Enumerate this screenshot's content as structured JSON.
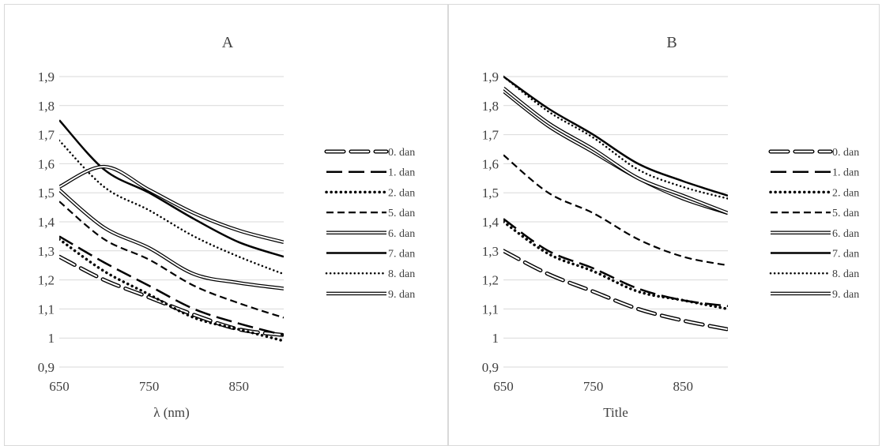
{
  "chart_data": [
    {
      "type": "line",
      "title": "A",
      "xlabel": "λ (nm)",
      "ylabel": "",
      "xlim": [
        650,
        900
      ],
      "ylim": [
        0.9,
        1.9
      ],
      "x_ticks": [
        "650",
        "750",
        "850"
      ],
      "y_ticks": [
        "0,9",
        "1",
        "1,1",
        "1,2",
        "1,3",
        "1,4",
        "1,5",
        "1,6",
        "1,7",
        "1,8",
        "1,9"
      ],
      "x": [
        650,
        700,
        750,
        800,
        850,
        900
      ],
      "grid": "horizontal",
      "legend_position": "right",
      "series": [
        {
          "name": "0. dan",
          "style": "double-dash",
          "values": [
            1.28,
            1.2,
            1.14,
            1.08,
            1.03,
            1.01
          ]
        },
        {
          "name": "1. dan",
          "style": "long-dash",
          "values": [
            1.35,
            1.26,
            1.18,
            1.1,
            1.05,
            1.01
          ]
        },
        {
          "name": "2. dan",
          "style": "round-dot",
          "values": [
            1.34,
            1.23,
            1.15,
            1.07,
            1.03,
            0.99
          ]
        },
        {
          "name": "5. dan",
          "style": "dash",
          "values": [
            1.47,
            1.34,
            1.27,
            1.18,
            1.12,
            1.07
          ]
        },
        {
          "name": "6. dan",
          "style": "double",
          "values": [
            1.51,
            1.38,
            1.31,
            1.22,
            1.19,
            1.17
          ]
        },
        {
          "name": "7. dan",
          "style": "solid",
          "values": [
            1.75,
            1.58,
            1.5,
            1.41,
            1.33,
            1.28
          ]
        },
        {
          "name": "8. dan",
          "style": "fine-dot",
          "values": [
            1.68,
            1.52,
            1.44,
            1.35,
            1.28,
            1.22
          ]
        },
        {
          "name": "9. dan",
          "style": "double",
          "values": [
            1.52,
            1.59,
            1.51,
            1.43,
            1.37,
            1.33
          ]
        }
      ]
    },
    {
      "type": "line",
      "title": "B",
      "xlabel": "Title",
      "ylabel": "",
      "xlim": [
        650,
        900
      ],
      "ylim": [
        0.9,
        1.9
      ],
      "x_ticks": [
        "650",
        "750",
        "850"
      ],
      "y_ticks": [
        "0,9",
        "1",
        "1,1",
        "1,2",
        "1,3",
        "1,4",
        "1,5",
        "1,6",
        "1,7",
        "1,8",
        "1,9"
      ],
      "x": [
        650,
        700,
        750,
        800,
        850,
        900
      ],
      "grid": "horizontal",
      "legend_position": "right",
      "series": [
        {
          "name": "0. dan",
          "style": "double-dash",
          "values": [
            1.3,
            1.22,
            1.16,
            1.1,
            1.06,
            1.03
          ]
        },
        {
          "name": "1. dan",
          "style": "long-dash",
          "values": [
            1.41,
            1.3,
            1.24,
            1.17,
            1.13,
            1.11
          ]
        },
        {
          "name": "2. dan",
          "style": "round-dot",
          "values": [
            1.4,
            1.29,
            1.23,
            1.16,
            1.13,
            1.1
          ]
        },
        {
          "name": "5. dan",
          "style": "dash",
          "values": [
            1.63,
            1.5,
            1.43,
            1.34,
            1.28,
            1.25
          ]
        },
        {
          "name": "6. dan",
          "style": "double",
          "values": [
            1.85,
            1.73,
            1.64,
            1.55,
            1.48,
            1.43
          ]
        },
        {
          "name": "7. dan",
          "style": "solid",
          "values": [
            1.9,
            1.79,
            1.7,
            1.6,
            1.54,
            1.49
          ]
        },
        {
          "name": "8. dan",
          "style": "fine-dot",
          "values": [
            1.9,
            1.78,
            1.69,
            1.58,
            1.52,
            1.48
          ]
        },
        {
          "name": "9. dan",
          "style": "double",
          "values": [
            1.86,
            1.74,
            1.65,
            1.55,
            1.49,
            1.43
          ]
        }
      ]
    }
  ]
}
